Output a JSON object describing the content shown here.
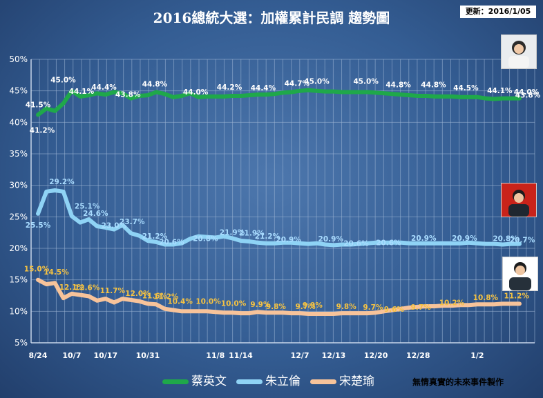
{
  "title": "2016總統大選：加權累計民調 趨勢圖",
  "update_label": "更新：2016/1/05",
  "credit": "無情真實的未來事件製作",
  "chart_data": {
    "type": "line",
    "title": "2016總統大選：加權累計民調 趨勢圖",
    "xlabel": "",
    "ylabel": "",
    "ylim": [
      5,
      50
    ],
    "y_ticks": [
      "5%",
      "10%",
      "15%",
      "20%",
      "25%",
      "30%",
      "35%",
      "40%",
      "45%",
      "50%"
    ],
    "x_ticks": [
      "8/24",
      "10/7",
      "10/17",
      "10/31",
      "11/8",
      "11/14",
      "12/7",
      "12/13",
      "12/20",
      "12/28",
      "1/2"
    ],
    "grid": true,
    "legend_position": "bottom",
    "series": [
      {
        "name": "蔡英文",
        "color": "#1fa84a",
        "points": [
          [
            0,
            41.2
          ],
          [
            1,
            42.2
          ],
          [
            2,
            41.8
          ],
          [
            3,
            43
          ],
          [
            4,
            45
          ],
          [
            5,
            44.1
          ],
          [
            6,
            44.3
          ],
          [
            7,
            44.6
          ],
          [
            8,
            44.4
          ],
          [
            9,
            44.8
          ],
          [
            10,
            44.6
          ],
          [
            11,
            43.8
          ],
          [
            12,
            44.2
          ],
          [
            13,
            44.3
          ],
          [
            14,
            44.8
          ],
          [
            15,
            44.5
          ],
          [
            16,
            44
          ],
          [
            17,
            44.2
          ],
          [
            18,
            44.6
          ],
          [
            19,
            44
          ],
          [
            20,
            44.1
          ],
          [
            21,
            44.1
          ],
          [
            22,
            44.1
          ],
          [
            23,
            44.2
          ],
          [
            24,
            44.2
          ],
          [
            25,
            44.3
          ],
          [
            26,
            44.4
          ],
          [
            27,
            44.4
          ],
          [
            28,
            44.5
          ],
          [
            29,
            44.7
          ],
          [
            30,
            44.8
          ],
          [
            31,
            45
          ],
          [
            32,
            45.1
          ],
          [
            33,
            45
          ],
          [
            34,
            44.9
          ],
          [
            35,
            44.9
          ],
          [
            36,
            44.8
          ],
          [
            37,
            44.8
          ],
          [
            38,
            44.8
          ],
          [
            39,
            44.8
          ],
          [
            40,
            44.7
          ],
          [
            41,
            44.6
          ],
          [
            42,
            44.5
          ],
          [
            43,
            44.4
          ],
          [
            44,
            44.3
          ],
          [
            45,
            44.2
          ],
          [
            46,
            44.2
          ],
          [
            47,
            44.1
          ],
          [
            48,
            44.1
          ],
          [
            49,
            44.1
          ],
          [
            50,
            44
          ],
          [
            51,
            44
          ],
          [
            52,
            44
          ],
          [
            53,
            43.8
          ],
          [
            54,
            43.7
          ],
          [
            55,
            43.8
          ],
          [
            56,
            43.8
          ],
          [
            57,
            43.8
          ]
        ]
      },
      {
        "name": "朱立倫",
        "color": "#8fd3f5",
        "points": [
          [
            0,
            25.5
          ],
          [
            1,
            29
          ],
          [
            2,
            29.2
          ],
          [
            3,
            29
          ],
          [
            4,
            25.1
          ],
          [
            5,
            24.1
          ],
          [
            6,
            24.6
          ],
          [
            7,
            23.5
          ],
          [
            8,
            23.3
          ],
          [
            9,
            23
          ],
          [
            10,
            23.7
          ],
          [
            11,
            22.4
          ],
          [
            12,
            22
          ],
          [
            13,
            21.2
          ],
          [
            14,
            21
          ],
          [
            15,
            20.6
          ],
          [
            16,
            20.6
          ],
          [
            17,
            20.8
          ],
          [
            18,
            21.5
          ],
          [
            19,
            21.9
          ],
          [
            20,
            21.8
          ],
          [
            21,
            21.7
          ],
          [
            22,
            21.9
          ],
          [
            23,
            21.6
          ],
          [
            24,
            21.2
          ],
          [
            25,
            21.1
          ],
          [
            26,
            20.9
          ],
          [
            27,
            20.8
          ],
          [
            28,
            20.8
          ],
          [
            29,
            20.9
          ],
          [
            30,
            20.9
          ],
          [
            31,
            20.8
          ],
          [
            32,
            20.7
          ],
          [
            33,
            20.8
          ],
          [
            34,
            20.6
          ],
          [
            35,
            20.5
          ],
          [
            36,
            20.6
          ],
          [
            37,
            20.6
          ],
          [
            38,
            20.7
          ],
          [
            39,
            20.8
          ],
          [
            40,
            20.9
          ],
          [
            41,
            20.9
          ],
          [
            42,
            20.9
          ],
          [
            43,
            20.9
          ],
          [
            44,
            20.8
          ],
          [
            45,
            20.8
          ],
          [
            46,
            20.8
          ],
          [
            47,
            20.8
          ],
          [
            48,
            20.8
          ],
          [
            49,
            20.8
          ],
          [
            50,
            20.8
          ],
          [
            51,
            20.9
          ],
          [
            52,
            20.8
          ],
          [
            53,
            20.7
          ],
          [
            54,
            20.7
          ],
          [
            55,
            20.6
          ],
          [
            56,
            20.7
          ],
          [
            57,
            20.7
          ]
        ]
      },
      {
        "name": "宋楚瑜",
        "color": "#f7c39a",
        "points": [
          [
            0,
            15
          ],
          [
            1,
            14.3
          ],
          [
            2,
            14.5
          ],
          [
            3,
            12.1
          ],
          [
            4,
            12.8
          ],
          [
            5,
            12.6
          ],
          [
            6,
            12.4
          ],
          [
            7,
            11.7
          ],
          [
            8,
            12
          ],
          [
            9,
            11.4
          ],
          [
            10,
            12
          ],
          [
            11,
            11.8
          ],
          [
            12,
            11.6
          ],
          [
            13,
            11.2
          ],
          [
            14,
            11.1
          ],
          [
            15,
            10.4
          ],
          [
            16,
            10.2
          ],
          [
            17,
            10
          ],
          [
            18,
            10
          ],
          [
            19,
            10
          ],
          [
            20,
            10
          ],
          [
            21,
            9.9
          ],
          [
            22,
            9.8
          ],
          [
            23,
            9.8
          ],
          [
            24,
            9.7
          ],
          [
            25,
            9.7
          ],
          [
            26,
            9.9
          ],
          [
            27,
            9.8
          ],
          [
            28,
            9.8
          ],
          [
            29,
            9.8
          ],
          [
            30,
            9.7
          ],
          [
            31,
            9.7
          ],
          [
            32,
            9.6
          ],
          [
            33,
            9.6
          ],
          [
            34,
            9.6
          ],
          [
            35,
            9.6
          ],
          [
            36,
            9.7
          ],
          [
            37,
            9.7
          ],
          [
            38,
            9.7
          ],
          [
            39,
            9.7
          ],
          [
            40,
            9.8
          ],
          [
            41,
            10
          ],
          [
            42,
            10.2
          ],
          [
            43,
            10.4
          ],
          [
            44,
            10.6
          ],
          [
            45,
            10.7
          ],
          [
            46,
            10.8
          ],
          [
            47,
            10.8
          ],
          [
            48,
            10.9
          ],
          [
            49,
            10.9
          ],
          [
            50,
            11
          ],
          [
            51,
            11
          ],
          [
            52,
            11.1
          ],
          [
            53,
            11.1
          ],
          [
            54,
            11.1
          ],
          [
            55,
            11.2
          ],
          [
            56,
            11.2
          ],
          [
            57,
            11.2
          ]
        ]
      }
    ],
    "data_labels": {
      "green": [
        "41.5%",
        "41.2%",
        "45.0%",
        "44.1%",
        "44.4%",
        "43.8%",
        "44.8%",
        "44.0%",
        "44.2%",
        "44.4%",
        "44.7%",
        "45.0%",
        "45.0%",
        "44.8%",
        "44.8%",
        "44.5%",
        "44.1%",
        "44.0%",
        "43.8%"
      ],
      "blue": [
        "25.5%",
        "29.2%",
        "25.1%",
        "24.6%",
        "23.0%",
        "23.7%",
        "21.2%",
        "20.6%",
        "20.8%",
        "21.9%",
        "21.9%",
        "21.2%",
        "20.9%",
        "20.9%",
        "20.6%",
        "20.6%",
        "20.9%",
        "20.9%",
        "20.8%",
        "20.7%"
      ],
      "orange": [
        "15.0%",
        "14.5%",
        "12.1%",
        "12.6%",
        "11.7%",
        "12.0%",
        "11.6%",
        "11.2%",
        "10.4%",
        "10.0%",
        "10.0%",
        "9.9%",
        "9.8%",
        "9.7%",
        "9.9%",
        "9.8%",
        "9.7%",
        "9.6%",
        "9.7%",
        "10.2%",
        "10.8%",
        "11.2%"
      ]
    }
  }
}
